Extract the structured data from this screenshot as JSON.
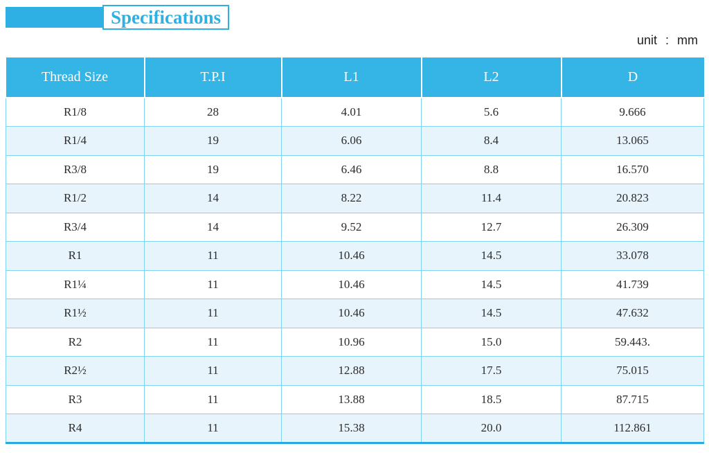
{
  "title": "Specifications",
  "unit": {
    "label": "unit",
    "separator": ":",
    "value": "mm"
  },
  "table": {
    "columns": [
      "Thread Size",
      "T.P.I",
      "L1",
      "L2",
      "D"
    ],
    "rows": [
      [
        "R1/8",
        "28",
        "4.01",
        "5.6",
        "9.666"
      ],
      [
        "R1/4",
        "19",
        "6.06",
        "8.4",
        "13.065"
      ],
      [
        "R3/8",
        "19",
        "6.46",
        "8.8",
        "16.570"
      ],
      [
        "R1/2",
        "14",
        "8.22",
        "11.4",
        "20.823"
      ],
      [
        "R3/4",
        "14",
        "9.52",
        "12.7",
        "26.309"
      ],
      [
        "R1",
        "11",
        "10.46",
        "14.5",
        "33.078"
      ],
      [
        "R1¼",
        "11",
        "10.46",
        "14.5",
        "41.739"
      ],
      [
        "R1½",
        "11",
        "10.46",
        "14.5",
        "47.632"
      ],
      [
        "R2",
        "11",
        "10.96",
        "15.0",
        "59.443."
      ],
      [
        "R2½",
        "11",
        "12.88",
        "17.5",
        "75.015"
      ],
      [
        "R3",
        "11",
        "13.88",
        "18.5",
        "87.715"
      ],
      [
        "R4",
        "11",
        "15.38",
        "20.0",
        "112.861"
      ]
    ]
  },
  "colors": {
    "accent": "#2fb0e4",
    "header-bg": "#35b5e6",
    "row-alt": "#e8f4fc",
    "grid-line": "#7fd2f1",
    "bottom-border": "#2aa9e0",
    "body-text": "#2b2b2b"
  }
}
